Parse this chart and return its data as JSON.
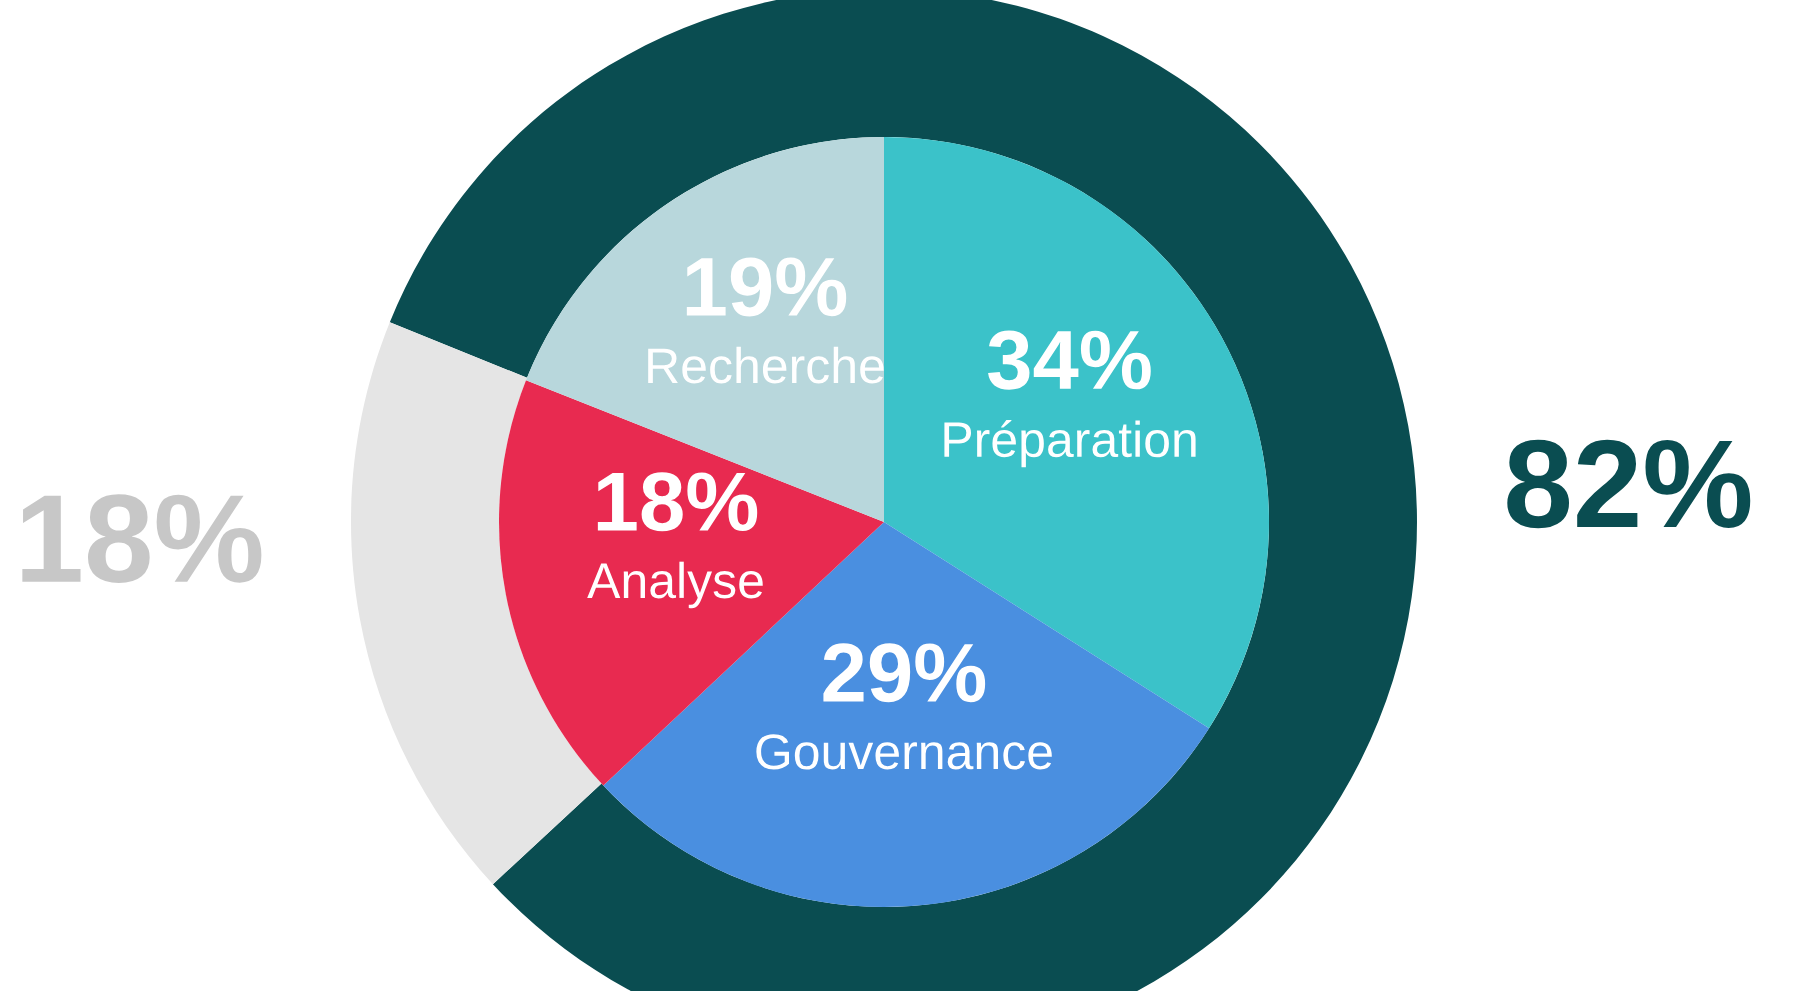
{
  "chart_data": {
    "type": "pie",
    "categories": [
      "Préparation",
      "Gouvernance",
      "Analyse",
      "Recherche",
      null,
      null
    ],
    "series": [
      {
        "values": [
          34,
          29,
          18,
          19,
          null,
          null
        ],
        "colors": [
          "#3bc2c9",
          "#4a8fe0",
          "#e82a50",
          "#b8d7dc",
          null,
          null
        ],
        "value_labels": [
          "34%",
          "29%",
          "18%",
          "19%",
          null,
          null
        ]
      },
      {
        "type": "donut",
        "values": [
          null,
          null,
          null,
          null,
          82,
          18
        ],
        "colors": [
          null,
          null,
          null,
          null,
          "#0a4d51",
          "#e5e5e5"
        ],
        "value_labels": [
          null,
          null,
          null,
          null,
          "82%",
          "18%"
        ]
      }
    ]
  }
}
